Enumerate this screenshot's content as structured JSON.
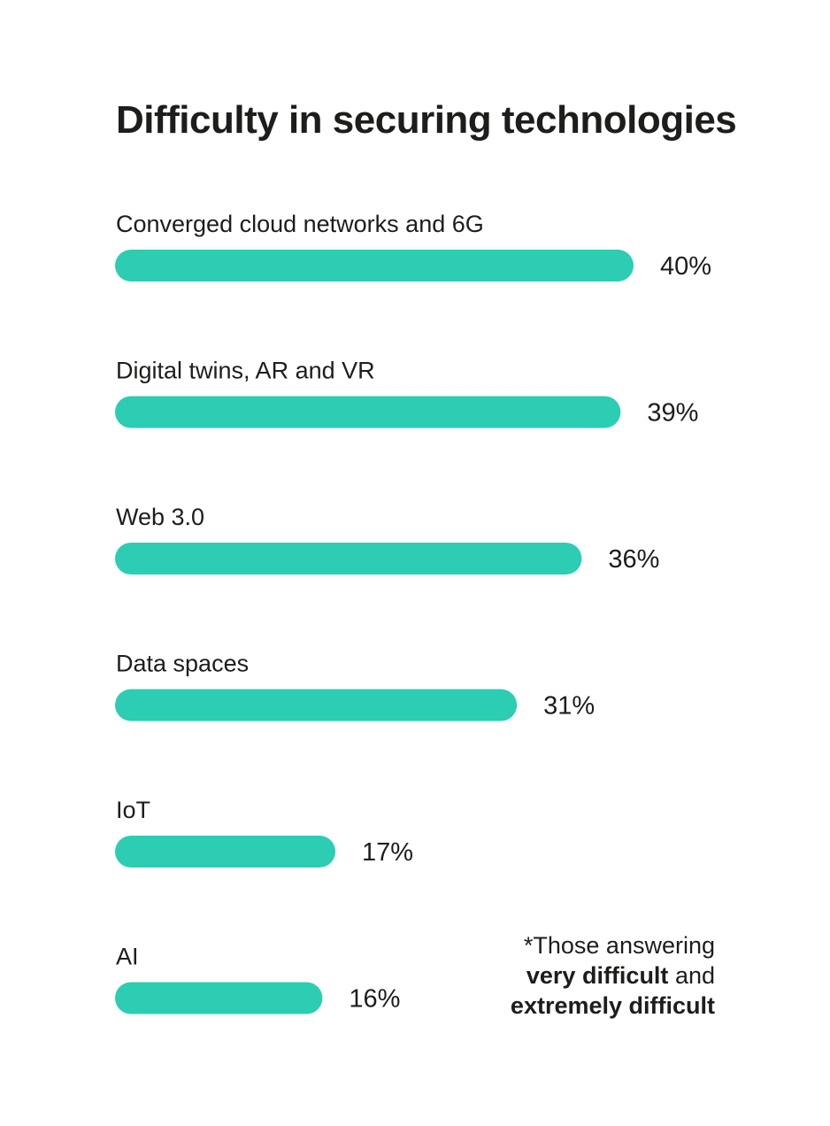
{
  "chart_data": {
    "type": "bar",
    "orientation": "horizontal",
    "title": "Difficulty in securing technologies",
    "categories": [
      "Converged cloud networks and 6G",
      "Digital twins, AR and VR",
      "Web 3.0",
      "Data spaces",
      "IoT",
      "AI"
    ],
    "values": [
      40,
      39,
      36,
      31,
      17,
      16
    ],
    "value_labels": [
      "40%",
      "39%",
      "36%",
      "31%",
      "17%",
      "16%"
    ],
    "unit": "%",
    "xlim": [
      0,
      40
    ],
    "grid": false,
    "legend": false,
    "bar_color": "#2ccdb3"
  },
  "footnote": {
    "line1": "*Those answering",
    "line2_bold": "very difficult",
    "line2_rest": " and",
    "line3_bold": "extremely difficult"
  }
}
